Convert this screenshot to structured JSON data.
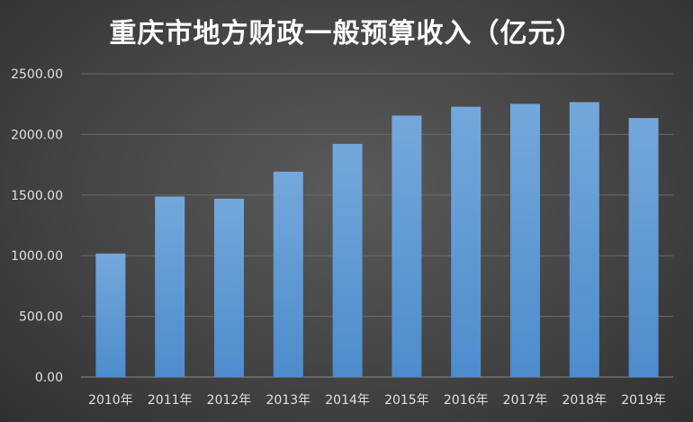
{
  "chart_data": {
    "type": "bar",
    "title": "重庆市地方财政一般预算收入（亿元）",
    "categories": [
      "2010年",
      "2011年",
      "2012年",
      "2013年",
      "2014年",
      "2015年",
      "2016年",
      "2017年",
      "2018年",
      "2019年"
    ],
    "values": [
      1018,
      1488,
      1470,
      1693,
      1922,
      2155,
      2228,
      2252,
      2266,
      2135
    ],
    "y_ticks": [
      "0.00",
      "500.00",
      "1000.00",
      "1500.00",
      "2000.00",
      "2500.00"
    ],
    "ylim": [
      0,
      2500
    ],
    "grid": true,
    "legend": "none",
    "colors": {
      "bar_top": "#74a8dc",
      "bar_bottom": "#4d8ccc",
      "grid": "#6a6a6a",
      "axis": "#8a8a8a",
      "text": "#e0e0e0"
    }
  }
}
